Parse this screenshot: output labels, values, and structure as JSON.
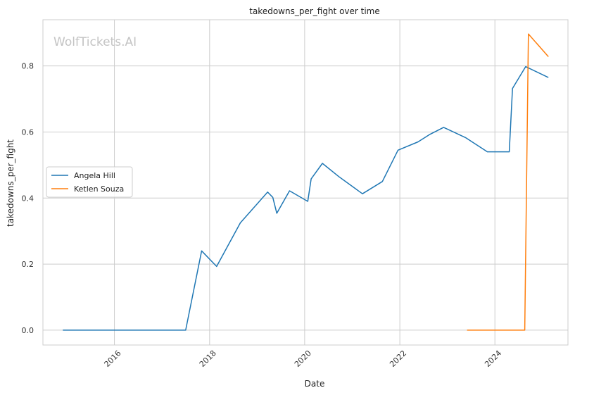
{
  "chart_data": {
    "type": "line",
    "title": "takedowns_per_fight over time",
    "xlabel": "Date",
    "ylabel": "takedowns_per_fight",
    "watermark": "WolfTickets.AI",
    "xlim": [
      "2014-07-01",
      "2025-07-15"
    ],
    "ylim": [
      -0.045,
      0.94
    ],
    "x_ticks": [
      "2016",
      "2018",
      "2020",
      "2022",
      "2024"
    ],
    "y_ticks": [
      "0.0",
      "0.2",
      "0.4",
      "0.6",
      "0.8"
    ],
    "grid": true,
    "legend_position": "center-left",
    "series": [
      {
        "name": "Angela Hill",
        "color": "#1f77b4",
        "x": [
          "2014-12-01",
          "2017-07-01",
          "2017-11-01",
          "2018-02-24",
          "2018-08-25",
          "2019-03-23",
          "2019-05-01",
          "2019-06-01",
          "2019-09-07",
          "2020-01-25",
          "2020-02-20",
          "2020-05-16",
          "2020-09-19",
          "2021-03-20",
          "2021-08-20",
          "2021-12-18",
          "2022-05-21",
          "2022-08-20",
          "2022-12-03",
          "2023-05-20",
          "2023-11-04",
          "2024-04-20",
          "2024-05-15",
          "2024-08-24",
          "2025-02-15"
        ],
        "y": [
          0.0,
          0.0,
          0.24,
          0.193,
          0.325,
          0.418,
          0.402,
          0.354,
          0.422,
          0.39,
          0.458,
          0.505,
          0.465,
          0.413,
          0.45,
          0.545,
          0.57,
          0.593,
          0.614,
          0.583,
          0.54,
          0.54,
          0.732,
          0.798,
          0.765
        ]
      },
      {
        "name": "Ketlen Souza",
        "color": "#ff7f0e",
        "x": [
          "2023-06-01",
          "2024-08-17",
          "2024-09-14",
          "2025-02-15"
        ],
        "y": [
          0.0,
          0.0,
          0.897,
          0.828
        ]
      }
    ]
  }
}
